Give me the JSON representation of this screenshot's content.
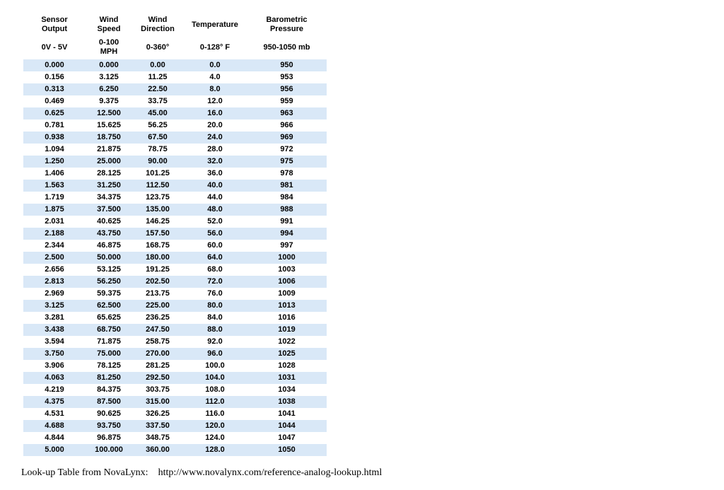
{
  "page": {
    "background": "#ffffff"
  },
  "table": {
    "stripe_color": "#d9e8f7",
    "columns": [
      {
        "label": "Sensor\nOutput",
        "range": "0V - 5V"
      },
      {
        "label": "Wind\nSpeed",
        "range": "0-100\nMPH"
      },
      {
        "label": "Wind\nDirection",
        "range": "0-360°"
      },
      {
        "label": "Temperature",
        "range": "0-128° F"
      },
      {
        "label": "Barometric\nPressure",
        "range": "950-1050 mb"
      }
    ],
    "rows": [
      [
        "0.000",
        "0.000",
        "0.00",
        "0.0",
        "950"
      ],
      [
        "0.156",
        "3.125",
        "11.25",
        "4.0",
        "953"
      ],
      [
        "0.313",
        "6.250",
        "22.50",
        "8.0",
        "956"
      ],
      [
        "0.469",
        "9.375",
        "33.75",
        "12.0",
        "959"
      ],
      [
        "0.625",
        "12.500",
        "45.00",
        "16.0",
        "963"
      ],
      [
        "0.781",
        "15.625",
        "56.25",
        "20.0",
        "966"
      ],
      [
        "0.938",
        "18.750",
        "67.50",
        "24.0",
        "969"
      ],
      [
        "1.094",
        "21.875",
        "78.75",
        "28.0",
        "972"
      ],
      [
        "1.250",
        "25.000",
        "90.00",
        "32.0",
        "975"
      ],
      [
        "1.406",
        "28.125",
        "101.25",
        "36.0",
        "978"
      ],
      [
        "1.563",
        "31.250",
        "112.50",
        "40.0",
        "981"
      ],
      [
        "1.719",
        "34.375",
        "123.75",
        "44.0",
        "984"
      ],
      [
        "1.875",
        "37.500",
        "135.00",
        "48.0",
        "988"
      ],
      [
        "2.031",
        "40.625",
        "146.25",
        "52.0",
        "991"
      ],
      [
        "2.188",
        "43.750",
        "157.50",
        "56.0",
        "994"
      ],
      [
        "2.344",
        "46.875",
        "168.75",
        "60.0",
        "997"
      ],
      [
        "2.500",
        "50.000",
        "180.00",
        "64.0",
        "1000"
      ],
      [
        "2.656",
        "53.125",
        "191.25",
        "68.0",
        "1003"
      ],
      [
        "2.813",
        "56.250",
        "202.50",
        "72.0",
        "1006"
      ],
      [
        "2.969",
        "59.375",
        "213.75",
        "76.0",
        "1009"
      ],
      [
        "3.125",
        "62.500",
        "225.00",
        "80.0",
        "1013"
      ],
      [
        "3.281",
        "65.625",
        "236.25",
        "84.0",
        "1016"
      ],
      [
        "3.438",
        "68.750",
        "247.50",
        "88.0",
        "1019"
      ],
      [
        "3.594",
        "71.875",
        "258.75",
        "92.0",
        "1022"
      ],
      [
        "3.750",
        "75.000",
        "270.00",
        "96.0",
        "1025"
      ],
      [
        "3.906",
        "78.125",
        "281.25",
        "100.0",
        "1028"
      ],
      [
        "4.063",
        "81.250",
        "292.50",
        "104.0",
        "1031"
      ],
      [
        "4.219",
        "84.375",
        "303.75",
        "108.0",
        "1034"
      ],
      [
        "4.375",
        "87.500",
        "315.00",
        "112.0",
        "1038"
      ],
      [
        "4.531",
        "90.625",
        "326.25",
        "116.0",
        "1041"
      ],
      [
        "4.688",
        "93.750",
        "337.50",
        "120.0",
        "1044"
      ],
      [
        "4.844",
        "96.875",
        "348.75",
        "124.0",
        "1047"
      ],
      [
        "5.000",
        "100.000",
        "360.00",
        "128.0",
        "1050"
      ]
    ]
  },
  "footer": {
    "label": "Look-up Table from NovaLynx:",
    "url": "http://www.novalynx.com/reference-analog-lookup.html"
  }
}
